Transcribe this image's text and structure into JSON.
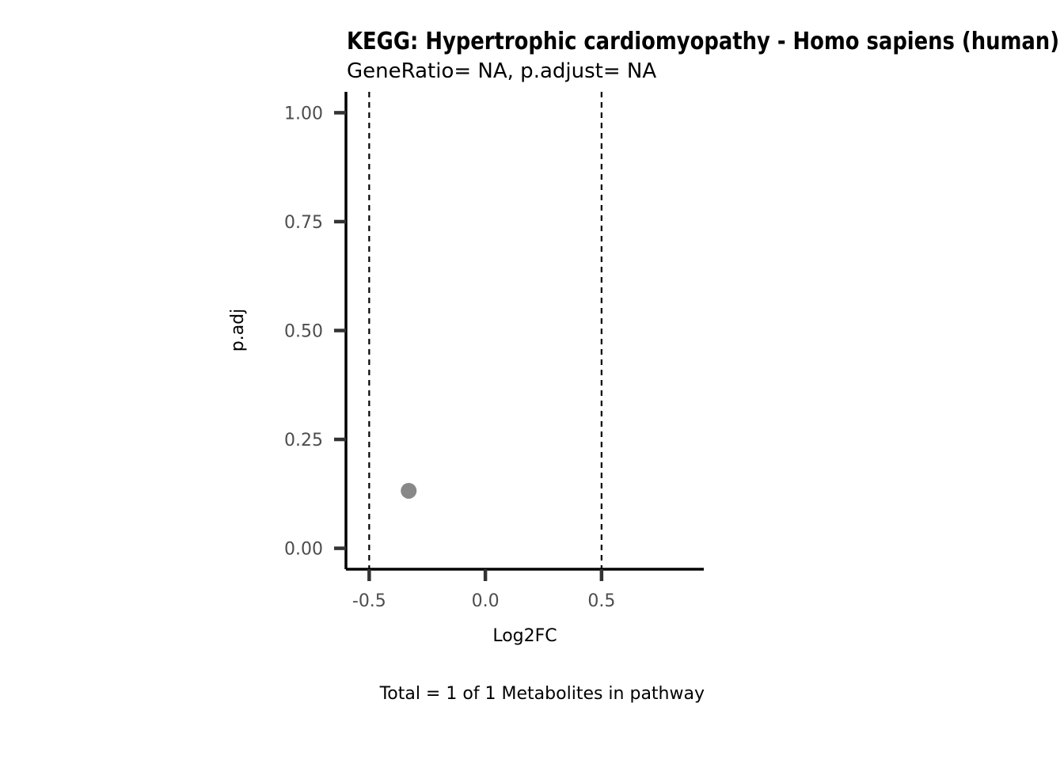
{
  "chart_data": {
    "type": "scatter",
    "title": "KEGG: Hypertrophic cardiomyopathy - Homo sapiens (human)",
    "subtitle": "GeneRatio= NA, p.adjust= NA",
    "xlabel": "Log2FC",
    "ylabel": "p.adj",
    "caption": "Total = 1 of 1 Metabolites in pathway",
    "xlim": [
      -0.6,
      0.94
    ],
    "ylim": [
      -0.048,
      1.048
    ],
    "x_ticks": [
      -0.5,
      0.0,
      0.5
    ],
    "x_tick_labels": [
      "-0.5",
      "0.0",
      "0.5"
    ],
    "y_ticks": [
      0.0,
      0.25,
      0.5,
      0.75,
      1.0
    ],
    "y_tick_labels": [
      "0.00",
      "0.25",
      "0.50",
      "0.75",
      "1.00"
    ],
    "vlines": [
      -0.5,
      0.5
    ],
    "grid": false,
    "points": [
      {
        "x": -0.33,
        "y": 0.132,
        "color": "#888888"
      }
    ],
    "colors": {
      "point": "#888888",
      "axis": "#000000",
      "tick": "#333333",
      "tick_label": "#4d4d4d",
      "vline": "#000000"
    }
  }
}
